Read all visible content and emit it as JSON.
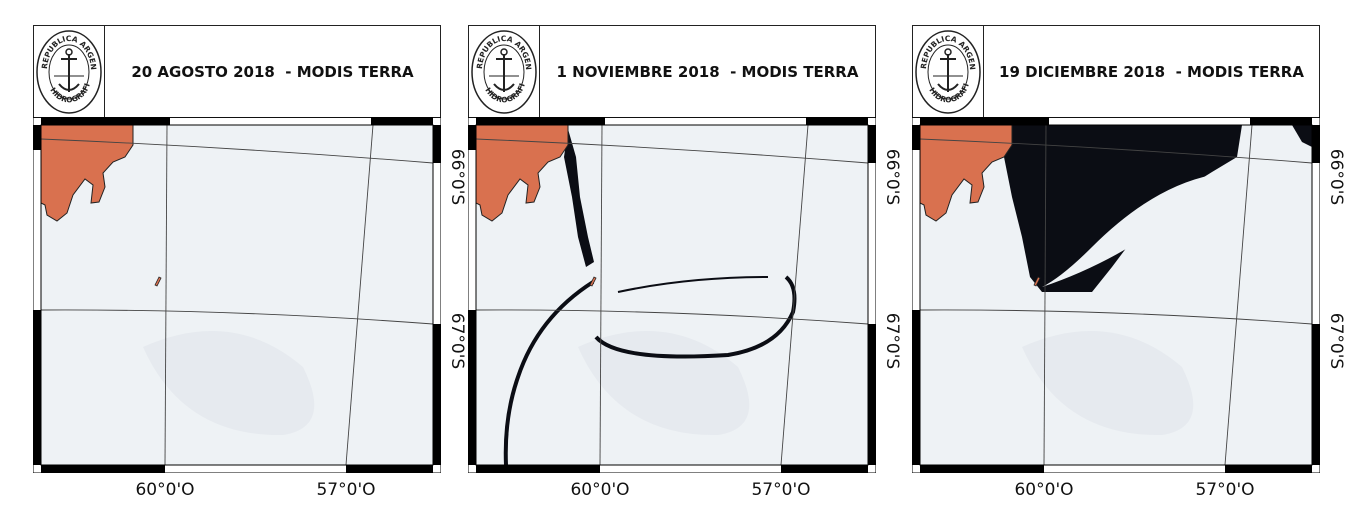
{
  "colors": {
    "land": "#d9714f",
    "ice": "#eef2f5",
    "water": "#0b0d14",
    "frame": "#000000"
  },
  "logo": {
    "text_top": "REPUBLICA ARGENTINA",
    "text_bottom": "HIDROGRAFIA",
    "icon": "anchor-seal-icon"
  },
  "panels": [
    {
      "title": "20 AGOSTO 2018  - MODIS TERRA",
      "lon_labels": [
        "60°0'O",
        "57°0'O"
      ],
      "lat_labels": [
        "66°0'S",
        "67°0'S"
      ],
      "water": "none"
    },
    {
      "title": "1 NOVIEMBRE 2018  - MODIS TERRA",
      "lon_labels": [
        "60°0'O",
        "57°0'O"
      ],
      "lat_labels": [
        "66°0'S",
        "67°0'S"
      ],
      "water": "cracks"
    },
    {
      "title": "19 DICIEMBRE 2018  - MODIS TERRA",
      "lon_labels": [
        "60°0'O",
        "57°0'O"
      ],
      "lat_labels": [
        "66°0'S",
        "67°0'S"
      ],
      "water": "open"
    }
  ]
}
